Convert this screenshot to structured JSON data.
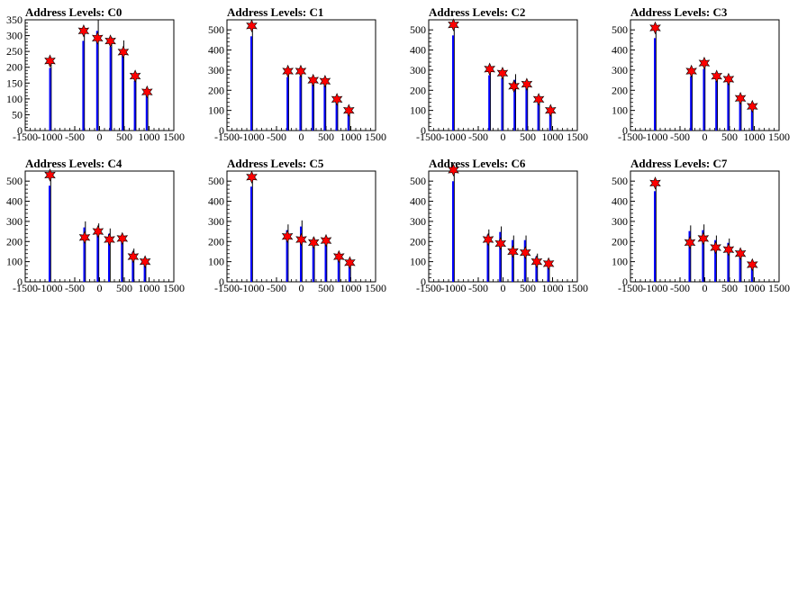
{
  "chart_data": [
    {
      "type": "bar",
      "title": "Address Levels: C0",
      "xlim": [
        -1500,
        1500
      ],
      "ylim": [
        0,
        350
      ],
      "xticks": [
        -1500,
        -1000,
        -500,
        0,
        500,
        1000,
        1500
      ],
      "yticks": [
        0,
        50,
        100,
        150,
        200,
        250,
        300,
        350
      ],
      "series": [
        {
          "x": [
            -990,
            -320,
            -40,
            230,
            475,
            720,
            960
          ],
          "values": [
            220,
            315,
            350,
            295,
            285,
            175,
            125
          ]
        }
      ],
      "peaks": [
        {
          "x": -1000,
          "y": 220
        },
        {
          "x": -320,
          "y": 315
        },
        {
          "x": -40,
          "y": 292
        },
        {
          "x": 220,
          "y": 283
        },
        {
          "x": 480,
          "y": 248
        },
        {
          "x": 720,
          "y": 172
        },
        {
          "x": 960,
          "y": 122
        }
      ]
    },
    {
      "type": "bar",
      "title": "Address Levels: C1",
      "xlim": [
        -1500,
        1500
      ],
      "ylim": [
        0,
        550
      ],
      "xticks": [
        -1500,
        -1000,
        -500,
        0,
        500,
        1000,
        1500
      ],
      "yticks": [
        0,
        100,
        200,
        300,
        400,
        500
      ],
      "series": [
        {
          "x": [
            -1000,
            -270,
            -10,
            240,
            480,
            720,
            960
          ],
          "values": [
            520,
            295,
            300,
            255,
            250,
            160,
            100
          ]
        }
      ],
      "peaks": [
        {
          "x": -1000,
          "y": 520
        },
        {
          "x": -270,
          "y": 295
        },
        {
          "x": -10,
          "y": 295
        },
        {
          "x": 240,
          "y": 250
        },
        {
          "x": 480,
          "y": 245
        },
        {
          "x": 720,
          "y": 155
        },
        {
          "x": 960,
          "y": 100
        }
      ]
    },
    {
      "type": "bar",
      "title": "Address Levels: C2",
      "xlim": [
        -1500,
        1500
      ],
      "ylim": [
        0,
        550
      ],
      "xticks": [
        -1500,
        -1000,
        -500,
        0,
        500,
        1000,
        1500
      ],
      "yticks": [
        0,
        100,
        200,
        300,
        400,
        500
      ],
      "series": [
        {
          "x": [
            -1000,
            -270,
            -10,
            240,
            480,
            720,
            960
          ],
          "values": [
            525,
            305,
            290,
            280,
            235,
            155,
            100
          ]
        }
      ],
      "peaks": [
        {
          "x": -1000,
          "y": 525
        },
        {
          "x": -270,
          "y": 305
        },
        {
          "x": -10,
          "y": 285
        },
        {
          "x": 220,
          "y": 220
        },
        {
          "x": 480,
          "y": 230
        },
        {
          "x": 720,
          "y": 155
        },
        {
          "x": 960,
          "y": 100
        }
      ]
    },
    {
      "type": "bar",
      "title": "Address Levels: C3",
      "xlim": [
        -1500,
        1500
      ],
      "ylim": [
        0,
        550
      ],
      "xticks": [
        -1500,
        -1000,
        -500,
        0,
        500,
        1000,
        1500
      ],
      "yticks": [
        0,
        100,
        200,
        300,
        400,
        500
      ],
      "series": [
        {
          "x": [
            -1000,
            -270,
            -10,
            240,
            480,
            720,
            960
          ],
          "values": [
            510,
            300,
            340,
            275,
            265,
            165,
            125
          ]
        }
      ],
      "peaks": [
        {
          "x": -1000,
          "y": 510
        },
        {
          "x": -270,
          "y": 295
        },
        {
          "x": -10,
          "y": 335
        },
        {
          "x": 240,
          "y": 270
        },
        {
          "x": 480,
          "y": 255
        },
        {
          "x": 720,
          "y": 160
        },
        {
          "x": 960,
          "y": 120
        }
      ]
    },
    {
      "type": "bar",
      "title": "Address Levels: C4",
      "xlim": [
        -1500,
        1500
      ],
      "ylim": [
        0,
        550
      ],
      "xticks": [
        -1500,
        -1000,
        -500,
        0,
        500,
        1000,
        1500
      ],
      "yticks": [
        0,
        100,
        200,
        300,
        400,
        500
      ],
      "series": [
        {
          "x": [
            -1000,
            -300,
            -30,
            200,
            460,
            680,
            920
          ],
          "values": [
            530,
            300,
            290,
            265,
            230,
            165,
            110
          ]
        }
      ],
      "peaks": [
        {
          "x": -1000,
          "y": 530
        },
        {
          "x": -300,
          "y": 220
        },
        {
          "x": -30,
          "y": 250
        },
        {
          "x": 200,
          "y": 210
        },
        {
          "x": 460,
          "y": 215
        },
        {
          "x": 680,
          "y": 125
        },
        {
          "x": 920,
          "y": 100
        }
      ]
    },
    {
      "type": "bar",
      "title": "Address Levels: C5",
      "xlim": [
        -1500,
        1500
      ],
      "ylim": [
        0,
        550
      ],
      "xticks": [
        -1500,
        -1000,
        -500,
        0,
        500,
        1000,
        1500
      ],
      "yticks": [
        0,
        100,
        200,
        300,
        400,
        500
      ],
      "series": [
        {
          "x": [
            -1000,
            -280,
            0,
            250,
            500,
            760,
            980
          ],
          "values": [
            525,
            285,
            305,
            220,
            210,
            130,
            100
          ]
        }
      ],
      "peaks": [
        {
          "x": -1000,
          "y": 520
        },
        {
          "x": -280,
          "y": 225
        },
        {
          "x": 0,
          "y": 210
        },
        {
          "x": 250,
          "y": 195
        },
        {
          "x": 500,
          "y": 205
        },
        {
          "x": 760,
          "y": 125
        },
        {
          "x": 980,
          "y": 95
        }
      ]
    },
    {
      "type": "bar",
      "title": "Address Levels: C6",
      "xlim": [
        -1500,
        1500
      ],
      "ylim": [
        0,
        550
      ],
      "xticks": [
        -1500,
        -1000,
        -500,
        0,
        500,
        1000,
        1500
      ],
      "yticks": [
        0,
        100,
        200,
        300,
        400,
        500
      ],
      "series": [
        {
          "x": [
            -1000,
            -300,
            -50,
            200,
            450,
            680,
            920
          ],
          "values": [
            555,
            260,
            275,
            230,
            230,
            140,
            100
          ]
        }
      ],
      "peaks": [
        {
          "x": -1000,
          "y": 555
        },
        {
          "x": -300,
          "y": 210
        },
        {
          "x": -50,
          "y": 190
        },
        {
          "x": 200,
          "y": 150
        },
        {
          "x": 450,
          "y": 145
        },
        {
          "x": 680,
          "y": 100
        },
        {
          "x": 920,
          "y": 90
        }
      ]
    },
    {
      "type": "bar",
      "title": "Address Levels: C7",
      "xlim": [
        -1500,
        1500
      ],
      "ylim": [
        0,
        550
      ],
      "xticks": [
        -1500,
        -1000,
        -500,
        0,
        500,
        1000,
        1500
      ],
      "yticks": [
        0,
        100,
        200,
        300,
        400,
        500
      ],
      "series": [
        {
          "x": [
            -1000,
            -300,
            -30,
            220,
            480,
            720,
            960
          ],
          "values": [
            500,
            280,
            285,
            230,
            215,
            150,
            90
          ]
        }
      ],
      "peaks": [
        {
          "x": -1000,
          "y": 490
        },
        {
          "x": -300,
          "y": 195
        },
        {
          "x": -30,
          "y": 215
        },
        {
          "x": 220,
          "y": 170
        },
        {
          "x": 480,
          "y": 160
        },
        {
          "x": 720,
          "y": 140
        },
        {
          "x": 960,
          "y": 85
        }
      ]
    }
  ],
  "colors": {
    "histogram": "#0000ff",
    "spike": "#000000",
    "marker_fill": "#ff0000",
    "marker_stroke": "#000000",
    "frame": "#000000",
    "background": "#ffffff"
  }
}
